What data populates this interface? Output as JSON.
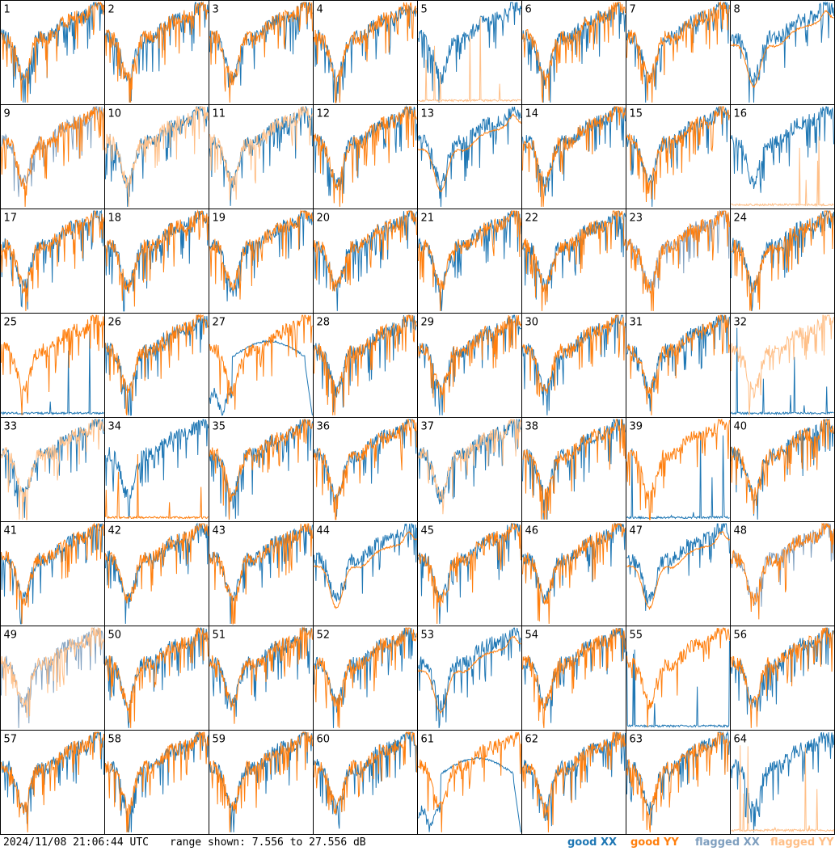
{
  "chart_data": {
    "type": "line",
    "grid_layout": "8x8 small multiples",
    "panels": [
      "1",
      "2",
      "3",
      "4",
      "5",
      "6",
      "7",
      "8",
      "9",
      "10",
      "11",
      "12",
      "13",
      "14",
      "15",
      "16",
      "17",
      "18",
      "19",
      "20",
      "21",
      "22",
      "23",
      "24",
      "25",
      "26",
      "27",
      "28",
      "29",
      "30",
      "31",
      "32",
      "33",
      "34",
      "35",
      "36",
      "37",
      "38",
      "39",
      "40",
      "41",
      "42",
      "43",
      "44",
      "45",
      "46",
      "47",
      "48",
      "49",
      "50",
      "51",
      "52",
      "53",
      "54",
      "55",
      "56",
      "57",
      "58",
      "59",
      "60",
      "61",
      "62",
      "63",
      "64"
    ],
    "ylim": [
      7.556,
      27.556
    ],
    "yunit": "dB",
    "legend": [
      {
        "name": "good XX",
        "color": "#1f77b4"
      },
      {
        "name": "good YY",
        "color": "#ff7f0e"
      },
      {
        "name": "flagged XX",
        "color": "#7f9fbf"
      },
      {
        "name": "flagged YY",
        "color": "#ffbf87"
      }
    ],
    "special_panels": {
      "5": "YY flagged (near floor with spikes)",
      "9": "XX flagged",
      "10": "YY flagged",
      "11": "YY flagged",
      "16": "YY flagged (near floor with spikes)",
      "23": "XX flagged",
      "25": "XX near floor",
      "27": "XX bump",
      "32": "YY flagged, XX near floor",
      "33": "YY flagged",
      "34": "YY near floor",
      "37": "YY flagged",
      "39": "XX near floor",
      "48": "XX flagged",
      "49": "XX flagged, YY flagged",
      "55": "XX near floor",
      "61": "XX bump",
      "64": "YY flagged (near floor with spikes)"
    }
  },
  "footer": {
    "timestamp": "2024/11/08 21:06:44 UTC",
    "range": "range shown: 7.556 to 27.556 dB",
    "legend_good_xx": "good XX",
    "legend_good_yy": "good YY",
    "legend_flagged_xx": "flagged XX",
    "legend_flagged_yy": "flagged YY"
  },
  "colors": {
    "good_xx": "#1f77b4",
    "good_yy": "#ff7f0e",
    "flagged_xx": "#7f9fbf",
    "flagged_yy": "#ffbf87"
  }
}
